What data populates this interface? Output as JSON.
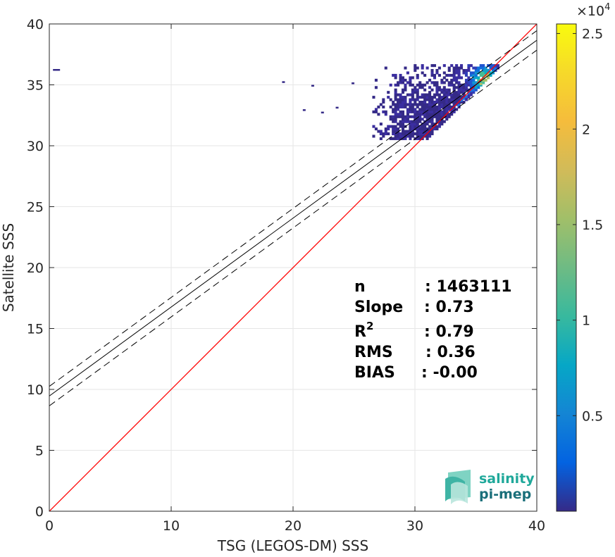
{
  "chart_data": {
    "type": "heatmap",
    "xlabel": "TSG (LEGOS-DM) SSS",
    "ylabel": "Satellite SSS",
    "xlim": [
      0,
      40
    ],
    "ylim": [
      0,
      40
    ],
    "x_ticks": [
      "0",
      "10",
      "20",
      "30",
      "40"
    ],
    "y_ticks": [
      "0",
      "5",
      "10",
      "15",
      "20",
      "25",
      "30",
      "35",
      "40"
    ],
    "grid": true,
    "colormap": "parula",
    "colorbar": {
      "range": [
        0,
        25500
      ],
      "exponent_label": "×10",
      "exponent_power": "4",
      "ticks": [
        "0.5",
        "1",
        "1.5",
        "2",
        "2.5"
      ],
      "tick_values": [
        5000,
        10000,
        15000,
        20000,
        25000
      ]
    },
    "identity_line": {
      "color": "#ff0000",
      "x": [
        0,
        40
      ],
      "y": [
        0,
        40
      ]
    },
    "fit_line": {
      "color": "#000000",
      "x": [
        0,
        40
      ],
      "y": [
        9.46,
        38.66
      ]
    },
    "fit_bounds": [
      {
        "x": [
          0,
          40
        ],
        "y": [
          10.25,
          39.45
        ],
        "style": "dashed"
      },
      {
        "x": [
          0,
          40
        ],
        "y": [
          8.65,
          37.85
        ],
        "style": "dashed"
      }
    ],
    "density_cluster": {
      "core_peak": [
        35.6,
        35.4
      ],
      "main_region": {
        "x": [
          26.5,
          36.8
        ],
        "y": [
          30.5,
          36.7
        ]
      },
      "outliers": [
        [
          0.3,
          36.3
        ],
        [
          19.1,
          35.3
        ],
        [
          21.5,
          35.0
        ],
        [
          24.8,
          35.2
        ],
        [
          20.8,
          33.0
        ],
        [
          22.3,
          32.8
        ],
        [
          23.5,
          33.2
        ]
      ]
    },
    "stats": [
      {
        "label": "n",
        "value": ": 1463111"
      },
      {
        "label": "Slope",
        "value": ": 0.73"
      },
      {
        "label": "R",
        "label_sup": "2",
        "value": ": 0.79"
      },
      {
        "label": "RMS",
        "value": ": 0.36"
      },
      {
        "label": "BIAS",
        "value": ": -0.00"
      }
    ]
  },
  "logo": {
    "line1": "salinity",
    "line2": "pi-mep",
    "color1": "#1fa89a",
    "color2": "#1a6f7a"
  }
}
